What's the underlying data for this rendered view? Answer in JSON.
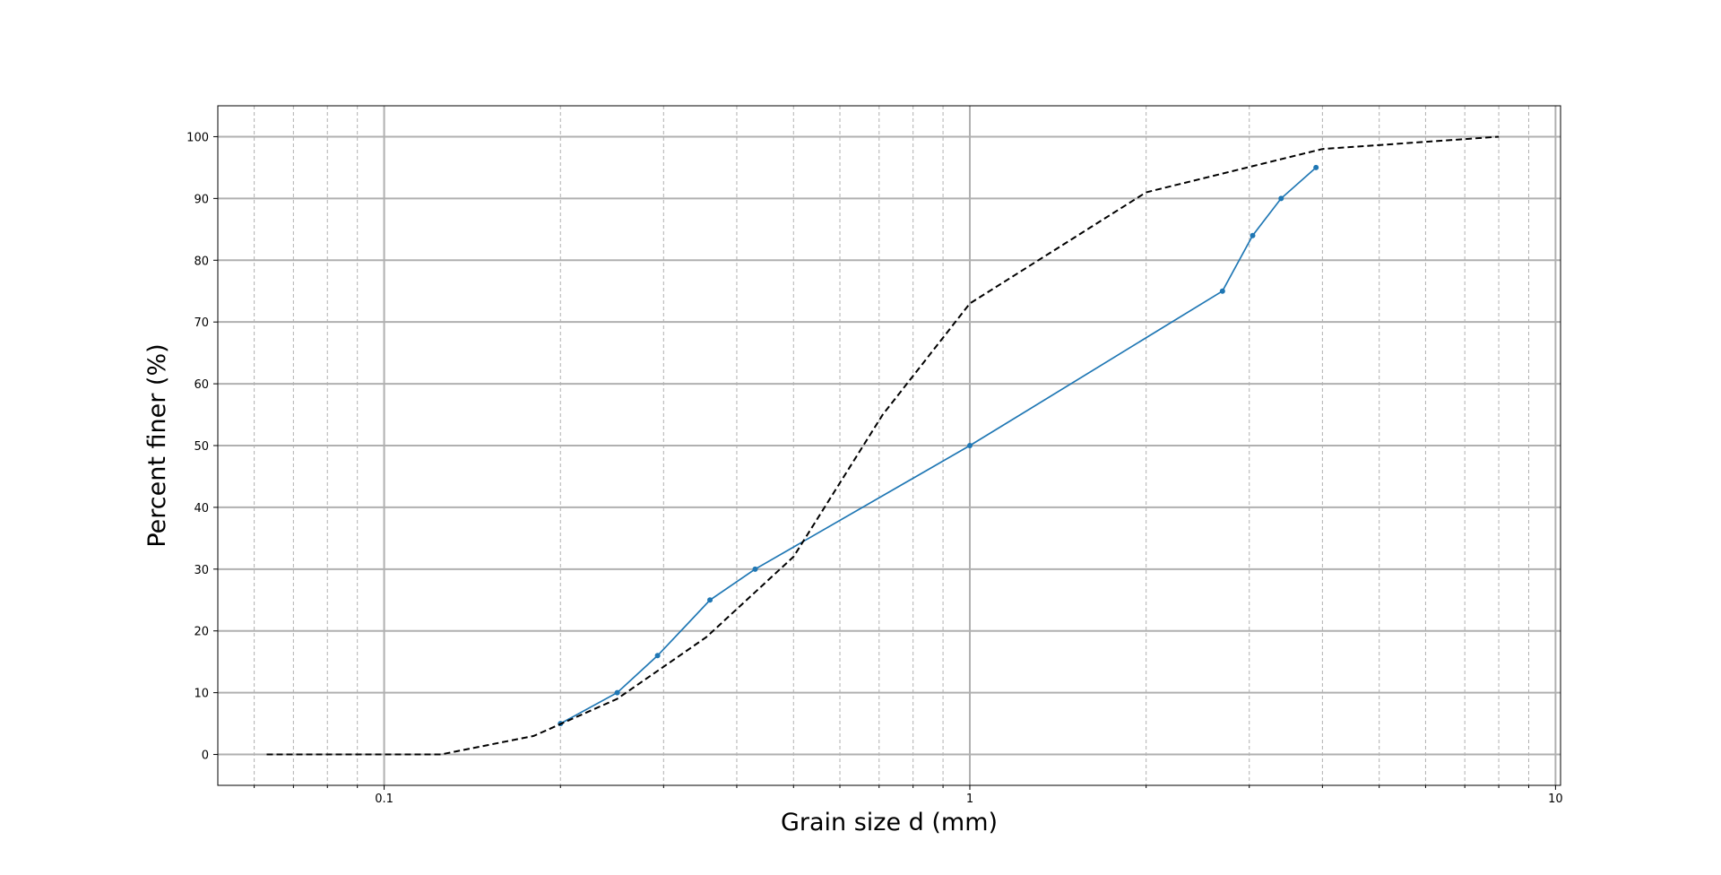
{
  "chart_data": {
    "type": "line",
    "title": "",
    "xlabel": "Grain size d (mm)",
    "ylabel": "Percent finer (%)",
    "xscale": "log",
    "xlim": [
      0.052,
      10.2
    ],
    "ylim": [
      -5,
      105
    ],
    "grid": true,
    "x_tick_labels": [
      {
        "value": 0.1,
        "label": "0.1"
      },
      {
        "value": 1,
        "label": "1"
      },
      {
        "value": 10,
        "label": "10"
      }
    ],
    "y_ticks": [
      0,
      10,
      20,
      30,
      40,
      50,
      60,
      70,
      80,
      90,
      100
    ],
    "series": [
      {
        "color": "#1f77b4",
        "style": "solid",
        "marker": "dot",
        "x": [
          0.2,
          0.25,
          0.293,
          0.36,
          0.43,
          1.0,
          2.7,
          3.04,
          3.4,
          3.9
        ],
        "y": [
          5,
          10,
          16,
          25,
          30,
          50,
          75,
          84,
          90,
          95
        ]
      },
      {
        "color": "#000000",
        "style": "dashed",
        "marker": "none",
        "x": [
          0.063,
          0.125,
          0.18,
          0.25,
          0.355,
          0.5,
          0.71,
          1.0,
          2.0,
          4.0,
          8.0
        ],
        "y": [
          0,
          0,
          3,
          9,
          19,
          32,
          55,
          73,
          91,
          98,
          100
        ]
      }
    ]
  }
}
